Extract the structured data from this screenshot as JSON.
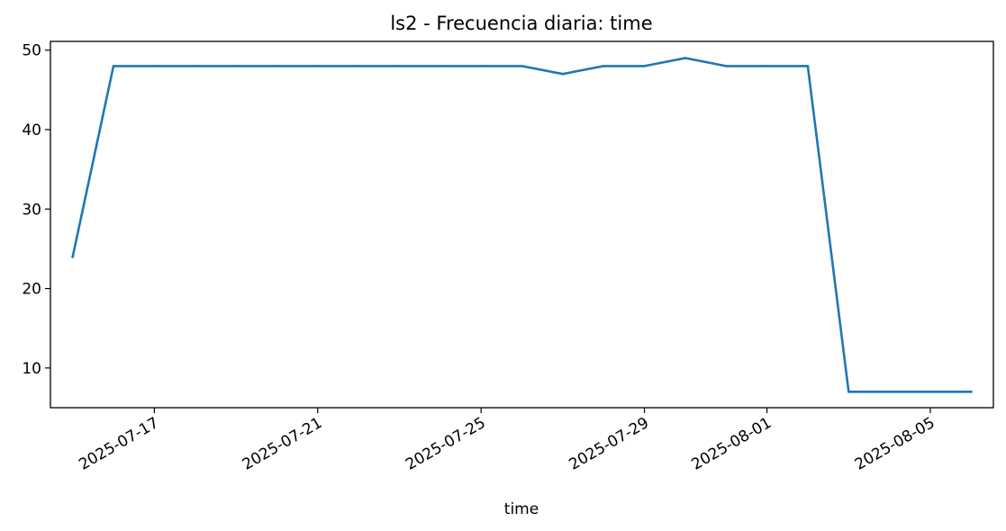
{
  "chart_data": {
    "type": "line",
    "title": "ls2 - Frecuencia diaria: time",
    "xlabel": "time",
    "ylabel": "",
    "x_type": "date",
    "xlim": [
      "2025-07-14T10:56",
      "2025-08-06T13:04"
    ],
    "ylim": [
      5,
      51.1
    ],
    "x_ticks": [
      "2025-07-17",
      "2025-07-21",
      "2025-07-25",
      "2025-07-29",
      "2025-08-01",
      "2025-08-05"
    ],
    "y_ticks": [
      10,
      20,
      30,
      40,
      50
    ],
    "grid": false,
    "series": [
      {
        "color": "#1f77b4",
        "x": [
          "2025-07-15",
          "2025-07-16",
          "2025-07-17",
          "2025-07-18",
          "2025-07-19",
          "2025-07-20",
          "2025-07-21",
          "2025-07-22",
          "2025-07-23",
          "2025-07-24",
          "2025-07-25",
          "2025-07-26",
          "2025-07-27",
          "2025-07-28",
          "2025-07-29",
          "2025-07-30",
          "2025-07-31",
          "2025-08-01",
          "2025-08-02",
          "2025-08-03",
          "2025-08-04",
          "2025-08-05",
          "2025-08-06"
        ],
        "y": [
          24,
          48,
          48,
          48,
          48,
          48,
          48,
          48,
          48,
          48,
          48,
          48,
          47,
          48,
          48,
          49,
          48,
          48,
          48,
          7,
          7,
          7,
          7
        ]
      }
    ]
  }
}
